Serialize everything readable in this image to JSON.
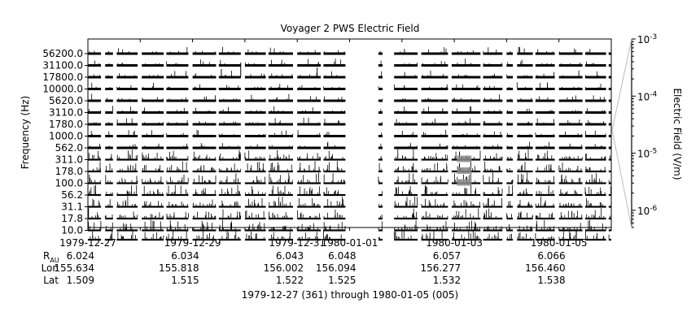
{
  "chart_data": {
    "type": "spectrogram-strip",
    "title": "Voyager 2 PWS Electric Field",
    "ylabel": "Frequency (Hz)",
    "y_ticks": [
      "56200.0",
      "31100.0",
      "17800.0",
      "10000.0",
      "5620.0",
      "3110.0",
      "1780.0",
      "1000.0",
      "562.0",
      "311.0",
      "178.0",
      "100.0",
      "56.2",
      "31.1",
      "17.8",
      "10.0"
    ],
    "colorbar": {
      "label": "Electric Field (V/m)",
      "scale": "log",
      "range": [
        5e-07,
        0.001
      ],
      "ticks": [
        {
          "value": 0.001,
          "base": "10",
          "exp": "-3"
        },
        {
          "value": 0.0001,
          "base": "10",
          "exp": "-4"
        },
        {
          "value": 1e-05,
          "base": "10",
          "exp": "-5"
        },
        {
          "value": 1e-06,
          "base": "10",
          "exp": "-6"
        }
      ]
    },
    "x_range_days": [
      361,
      371
    ],
    "x_ticks": [
      {
        "date": "1979-12-27",
        "day": 361,
        "r_au": "6.024",
        "lon": "155.634",
        "lat": "1.509"
      },
      {
        "date": "1979-12-29",
        "day": 363,
        "r_au": "6.034",
        "lon": "155.818",
        "lat": "1.515"
      },
      {
        "date": "1979-12-31",
        "day": 365,
        "r_au": "6.043",
        "lon": "156.002",
        "lat": "1.522"
      },
      {
        "date": "1980-01-01",
        "day": 366,
        "r_au": "6.048",
        "lon": "156.094",
        "lat": "1.525"
      },
      {
        "date": "1980-01-03",
        "day": 368,
        "r_au": "6.057",
        "lon": "156.277",
        "lat": "1.532"
      },
      {
        "date": "1980-01-05",
        "day": 370,
        "r_au": "6.066",
        "lon": "156.460",
        "lat": "1.538"
      }
    ],
    "data_segments": [
      [
        361.0,
        361.25
      ],
      [
        361.33,
        361.48
      ],
      [
        361.55,
        361.95
      ],
      [
        362.03,
        362.45
      ],
      [
        362.5,
        362.92
      ],
      [
        363.0,
        363.45
      ],
      [
        363.5,
        363.92
      ],
      [
        364.0,
        364.4
      ],
      [
        364.45,
        364.92
      ],
      [
        365.0,
        365.45
      ],
      [
        365.5,
        365.92
      ],
      [
        366.55,
        366.63
      ],
      [
        366.85,
        367.3
      ],
      [
        367.37,
        367.88
      ],
      [
        367.95,
        368.5
      ],
      [
        368.55,
        368.92
      ],
      [
        369.0,
        369.12
      ],
      [
        369.2,
        369.5
      ],
      [
        369.55,
        369.92
      ],
      [
        370.0,
        370.45
      ],
      [
        370.5,
        370.9
      ],
      [
        370.95,
        371.0
      ]
    ],
    "ephemeris_labels": {
      "r": "R",
      "r_sub": "AU",
      "lon": "Lon",
      "lat": "Lat"
    },
    "footer": "1979-12-27 (361) through 1980-01-05 (005)"
  }
}
